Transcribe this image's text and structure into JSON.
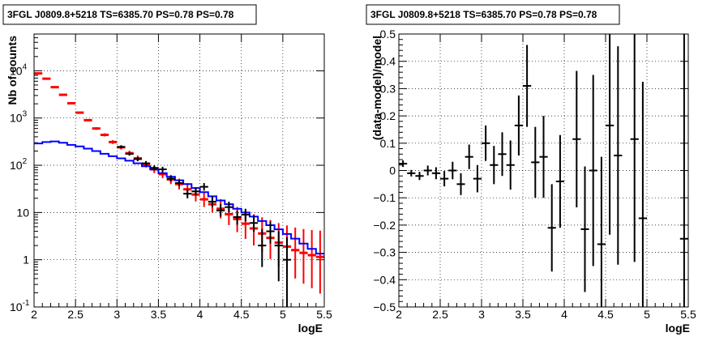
{
  "chart_data": [
    {
      "type": "scatter",
      "title": "3FGL J0809.8+5218 TS=6385.70 PS=0.78 PS=0.78",
      "xlabel": "logE",
      "ylabel": "Nb of counts",
      "yscale": "log",
      "xlim": [
        2,
        5.5
      ],
      "ylim": [
        0.1,
        60000
      ],
      "grid": true,
      "x_ticks": [
        "2",
        "2.5",
        "3",
        "3.5",
        "4",
        "4.5",
        "5",
        "5.5"
      ],
      "y_ticks": [
        {
          "value": 0.1,
          "base": "10",
          "exp": "-1",
          "label": ""
        },
        {
          "value": 1,
          "base": "",
          "exp": "",
          "label": "1"
        },
        {
          "value": 10,
          "base": "",
          "exp": "",
          "label": "10"
        },
        {
          "value": 100,
          "base": "10",
          "exp": "2",
          "label": ""
        },
        {
          "value": 1000,
          "base": "10",
          "exp": "3",
          "label": ""
        },
        {
          "value": 10000,
          "base": "10",
          "exp": "4",
          "label": ""
        }
      ],
      "series": [
        {
          "kind": "model-total-points",
          "color": "#ff0000",
          "points": [
            {
              "x": 2.05,
              "y": 8800
            },
            {
              "x": 2.15,
              "y": 6800
            },
            {
              "x": 2.25,
              "y": 4500
            },
            {
              "x": 2.35,
              "y": 3100
            },
            {
              "x": 2.45,
              "y": 2050
            },
            {
              "x": 2.55,
              "y": 1300
            },
            {
              "x": 2.65,
              "y": 900
            },
            {
              "x": 2.75,
              "y": 600
            },
            {
              "x": 2.85,
              "y": 440
            },
            {
              "x": 2.95,
              "y": 310
            },
            {
              "x": 3.05,
              "y": 240
            },
            {
              "x": 3.15,
              "y": 180
            },
            {
              "x": 3.25,
              "y": 140
            },
            {
              "x": 3.35,
              "y": 105
            },
            {
              "x": 3.45,
              "y": 82
            },
            {
              "x": 3.55,
              "y": 65
            },
            {
              "x": 3.65,
              "y": 50
            },
            {
              "x": 3.75,
              "y": 40
            },
            {
              "x": 3.85,
              "y": 31
            },
            {
              "x": 3.95,
              "y": 24
            },
            {
              "x": 4.05,
              "y": 19
            },
            {
              "x": 4.15,
              "y": 15
            },
            {
              "x": 4.25,
              "y": 12
            },
            {
              "x": 4.35,
              "y": 9.2
            },
            {
              "x": 4.45,
              "y": 7.3
            },
            {
              "x": 4.55,
              "y": 5.8
            },
            {
              "x": 4.65,
              "y": 4.6
            },
            {
              "x": 4.75,
              "y": 3.6
            },
            {
              "x": 4.85,
              "y": 2.9
            },
            {
              "x": 4.95,
              "y": 2.3
            },
            {
              "x": 5.05,
              "y": 1.9
            },
            {
              "x": 5.15,
              "y": 1.6
            },
            {
              "x": 5.25,
              "y": 1.4
            },
            {
              "x": 5.35,
              "y": 1.25
            },
            {
              "x": 5.45,
              "y": 1.15
            }
          ],
          "err_hi": [
            1.02,
            1.02,
            1.03,
            1.03,
            1.04,
            1.05,
            1.06,
            1.07,
            1.08,
            1.1,
            1.11,
            1.13,
            1.15,
            1.17,
            1.2,
            1.22,
            1.25,
            1.3,
            1.35,
            1.4,
            1.45,
            1.5,
            1.6,
            1.7,
            1.8,
            1.9,
            2.0,
            2.2,
            2.4,
            2.6,
            2.8,
            3.0,
            3.2,
            3.4,
            3.6
          ],
          "err_lo": [
            1.02,
            1.02,
            1.03,
            1.03,
            1.04,
            1.05,
            1.06,
            1.07,
            1.08,
            1.1,
            1.11,
            1.13,
            1.15,
            1.17,
            1.2,
            1.22,
            1.25,
            1.3,
            1.35,
            1.4,
            1.45,
            1.5,
            1.6,
            1.7,
            1.9,
            2.1,
            2.3,
            2.5,
            2.8,
            3.2,
            3.6,
            4.0,
            4.5,
            5.0,
            6.0
          ]
        },
        {
          "kind": "source-model-histogram",
          "color": "#0000ff",
          "edges": [
            2.0,
            2.1,
            2.2,
            2.3,
            2.4,
            2.5,
            2.6,
            2.7,
            2.8,
            2.9,
            3.0,
            3.1,
            3.2,
            3.3,
            3.4,
            3.5,
            3.6,
            3.7,
            3.8,
            3.9,
            4.0,
            4.1,
            4.2,
            4.3,
            4.4,
            4.5,
            4.6,
            4.7,
            4.8,
            4.9,
            5.0,
            5.1,
            5.2,
            5.3,
            5.4,
            5.5
          ],
          "values": [
            290,
            310,
            320,
            300,
            270,
            250,
            225,
            200,
            175,
            155,
            140,
            125,
            110,
            95,
            82,
            68,
            57,
            48,
            40,
            33,
            27,
            22,
            18,
            15,
            12,
            10,
            8.2,
            6.6,
            5.4,
            4.4,
            3.5,
            2.8,
            2.2,
            1.7,
            1.35
          ]
        },
        {
          "kind": "data-points",
          "color": "#000000",
          "points": [
            {
              "x": 3.05,
              "y": 245,
              "lo": 230,
              "hi": 262
            },
            {
              "x": 3.15,
              "y": 175,
              "lo": 162,
              "hi": 190
            },
            {
              "x": 3.25,
              "y": 135,
              "lo": 123,
              "hi": 148
            },
            {
              "x": 3.35,
              "y": 110,
              "lo": 99,
              "hi": 122
            },
            {
              "x": 3.45,
              "y": 88,
              "lo": 78,
              "hi": 99
            },
            {
              "x": 3.55,
              "y": 82,
              "lo": 72,
              "hi": 93
            },
            {
              "x": 3.65,
              "y": 52,
              "lo": 45,
              "hi": 60
            },
            {
              "x": 3.75,
              "y": 42,
              "lo": 36,
              "hi": 49
            },
            {
              "x": 3.85,
              "y": 25,
              "lo": 20,
              "hi": 31
            },
            {
              "x": 3.95,
              "y": 28,
              "lo": 23,
              "hi": 34
            },
            {
              "x": 4.05,
              "y": 35,
              "lo": 29,
              "hi": 42
            },
            {
              "x": 4.15,
              "y": 17,
              "lo": 13,
              "hi": 22
            },
            {
              "x": 4.25,
              "y": 11,
              "lo": 8.2,
              "hi": 15
            },
            {
              "x": 4.35,
              "y": 13,
              "lo": 10,
              "hi": 17
            },
            {
              "x": 4.45,
              "y": 8,
              "lo": 5.5,
              "hi": 11
            },
            {
              "x": 4.55,
              "y": 9,
              "lo": 6.5,
              "hi": 12
            },
            {
              "x": 4.65,
              "y": 6,
              "lo": 3.9,
              "hi": 8.7
            },
            {
              "x": 4.75,
              "y": 2,
              "lo": 0.7,
              "hi": 4.5
            },
            {
              "x": 4.85,
              "y": 4,
              "lo": 2.2,
              "hi": 6.5
            },
            {
              "x": 4.95,
              "y": 2,
              "lo": 0.35,
              "hi": 4.0
            },
            {
              "x": 5.05,
              "y": 1,
              "lo": 0.1,
              "hi": 3.0
            }
          ]
        }
      ]
    },
    {
      "type": "scatter",
      "title": "3FGL J0809.8+5218 TS=6385.70 PS=0.78 PS=0.78",
      "xlabel": "logE",
      "ylabel": "(data-model)/model",
      "xlim": [
        2,
        5.5
      ],
      "ylim": [
        -0.5,
        0.5
      ],
      "grid": true,
      "x_ticks": [
        "2",
        "2.5",
        "3",
        "3.5",
        "4",
        "4.5",
        "5",
        "5.5"
      ],
      "y_ticks": [
        "−0.5",
        "−0.4",
        "−0.3",
        "−0.2",
        "−0.1",
        "0",
        "0.1",
        "0.2",
        "0.3",
        "0.4",
        "0.5"
      ],
      "y_tick_values": [
        -0.5,
        -0.4,
        -0.3,
        -0.2,
        -0.1,
        0,
        0.1,
        0.2,
        0.3,
        0.4,
        0.5
      ],
      "series": [
        {
          "kind": "residuals",
          "color": "#000000",
          "points": [
            {
              "x": 2.05,
              "y": 0.025,
              "err": 0.012
            },
            {
              "x": 2.15,
              "y": -0.01,
              "err": 0.012
            },
            {
              "x": 2.25,
              "y": -0.02,
              "err": 0.015
            },
            {
              "x": 2.35,
              "y": 0.0,
              "err": 0.018
            },
            {
              "x": 2.45,
              "y": -0.01,
              "err": 0.022
            },
            {
              "x": 2.55,
              "y": -0.03,
              "err": 0.028
            },
            {
              "x": 2.65,
              "y": 0.0,
              "err": 0.032
            },
            {
              "x": 2.75,
              "y": -0.05,
              "err": 0.04
            },
            {
              "x": 2.85,
              "y": 0.05,
              "err": 0.045
            },
            {
              "x": 2.95,
              "y": -0.03,
              "err": 0.05
            },
            {
              "x": 3.05,
              "y": 0.1,
              "err": 0.065
            },
            {
              "x": 3.15,
              "y": 0.02,
              "err": 0.07
            },
            {
              "x": 3.25,
              "y": 0.06,
              "err": 0.08
            },
            {
              "x": 3.35,
              "y": 0.02,
              "err": 0.09
            },
            {
              "x": 3.45,
              "y": 0.165,
              "err": 0.11
            },
            {
              "x": 3.55,
              "y": 0.31,
              "err": 0.15
            },
            {
              "x": 3.65,
              "y": 0.03,
              "err": 0.13
            },
            {
              "x": 3.75,
              "y": 0.05,
              "err": 0.15
            },
            {
              "x": 3.85,
              "y": -0.21,
              "err": 0.16
            },
            {
              "x": 3.95,
              "y": -0.04,
              "err": 0.17
            },
            {
              "x": 4.15,
              "y": 0.115,
              "err": 0.25
            },
            {
              "x": 4.25,
              "y": -0.215,
              "err": 0.23
            },
            {
              "x": 4.35,
              "y": 0.0,
              "err": 0.35
            },
            {
              "x": 4.45,
              "y": -0.27,
              "err": 0.32
            },
            {
              "x": 4.55,
              "y": 0.165,
              "err": 0.4
            },
            {
              "x": 4.65,
              "y": 0.055,
              "err": 0.4
            },
            {
              "x": 4.85,
              "y": 0.115,
              "err": 0.45
            },
            {
              "x": 4.95,
              "y": -0.175,
              "err": 0.5
            },
            {
              "x": 5.45,
              "y": -0.25,
              "err": 0.75
            }
          ]
        }
      ]
    }
  ]
}
